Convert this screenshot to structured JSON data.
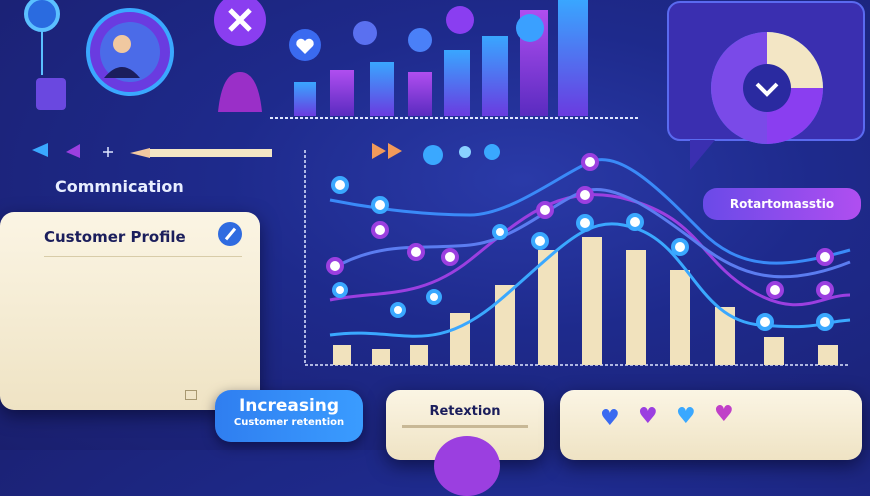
{
  "labels": {
    "communication": "Commnication",
    "customer_profile": "Customer Profile",
    "bubble_title": "Increasing",
    "bubble_subtitle": "Customer retention",
    "retention_card": "Retextion",
    "purple_bubble": "Rotartomasstio"
  },
  "colors": {
    "background": "#1e2a8c",
    "accent_blue": "#2f8cf0",
    "accent_purple": "#9b3fe0",
    "card_cream": "#f7eed6",
    "bar_beige": "#f1e2bd"
  },
  "icons": [
    "user-avatar-icon",
    "close-x-icon",
    "heart-icon",
    "pencil-icon",
    "play-arrow-icon",
    "chevron-down-icon",
    "edit-icon",
    "chat-bubble-icon"
  ]
}
